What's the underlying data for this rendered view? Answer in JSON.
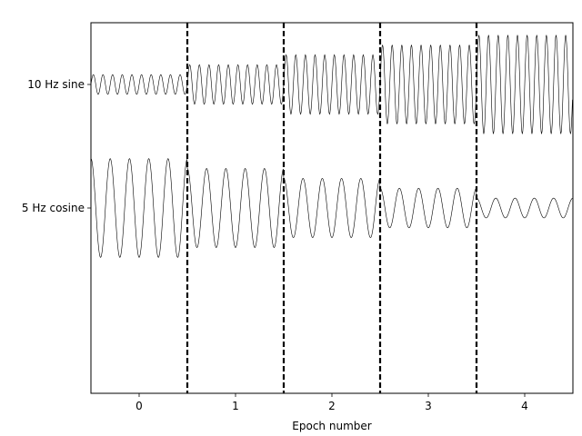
{
  "chart_data": {
    "type": "line",
    "title": "",
    "xlabel": "Epoch number",
    "ylabel": "",
    "xlim": [
      -0.5,
      4.5
    ],
    "x_ticks": [
      0,
      1,
      2,
      3,
      4
    ],
    "x_tick_labels": [
      "0",
      "1",
      "2",
      "3",
      "4"
    ],
    "y_tick_labels": [
      "10 Hz sine",
      "5 Hz cosine"
    ],
    "grid": false,
    "legend": "none",
    "epoch_boundaries": [
      0.5,
      1.5,
      2.5,
      3.5
    ],
    "sample_rate_hz": 200,
    "line_color": "#000000",
    "boundary_color": "#000000",
    "series": [
      {
        "name": "10 Hz sine",
        "frequency_hz": 10,
        "waveform": "sine",
        "epoch_amplitudes": [
          0.8,
          1.6,
          2.4,
          3.2,
          4.0
        ]
      },
      {
        "name": "5 Hz cosine",
        "frequency_hz": 5,
        "waveform": "cosine",
        "epoch_amplitudes": [
          4.0,
          3.2,
          2.4,
          1.6,
          0.8
        ]
      }
    ]
  }
}
